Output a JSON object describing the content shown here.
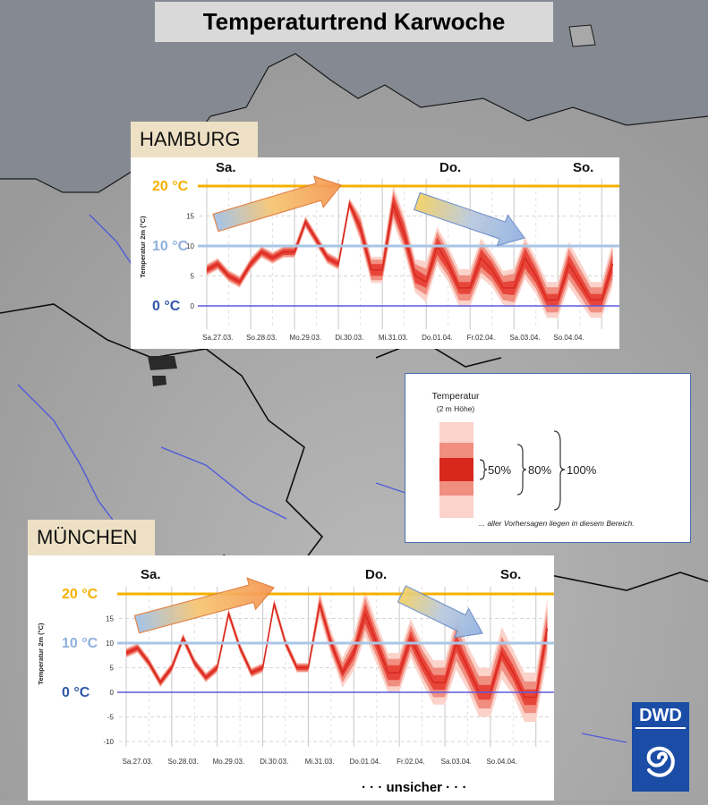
{
  "title": "Temperaturtrend Karwoche",
  "colors": {
    "line20": "#f5b000",
    "line10": "#a9c6e6",
    "line0": "#5a5ae0",
    "label20": "#f5b000",
    "label10": "#8fb0dc",
    "label0": "#2f57a8",
    "median": "#d8281e",
    "band50": "#e8453a",
    "band80": "#f08e80",
    "band100": "#fbd3ca"
  },
  "charts": [
    {
      "city": "HAMBURG",
      "ylabel": "Temperatur 2m (°C)",
      "yticks": [
        "15",
        "10",
        "5",
        "0"
      ],
      "xticks": [
        "Sa.27.03.",
        "So.28.03.",
        "Mo.29.03.",
        "Di.30.03.",
        "Mi.31.03.",
        "Do.01.04.",
        "Fr.02.04.",
        "Sa.03.04.",
        "So.04.04."
      ],
      "days": [
        "Sa.",
        "Do.",
        "So."
      ],
      "ref": [
        "20 °C",
        "10 °C",
        "0 °C"
      ]
    },
    {
      "city": "MÜNCHEN",
      "ylabel": "Temperatur 2m (°C)",
      "yticks": [
        "15",
        "10",
        "5",
        "0",
        "-5",
        "-10"
      ],
      "xticks": [
        "Sa.27.03.",
        "So.28.03.",
        "Mo.29.03.",
        "Di.30.03.",
        "Mi.31.03.",
        "Do.01.04.",
        "Fr.02.04.",
        "Sa.03.04.",
        "So.04.04."
      ],
      "days": [
        "Sa.",
        "Do.",
        "So."
      ],
      "ref": [
        "20 °C",
        "10 °C",
        "0 °C"
      ]
    }
  ],
  "chart_data": [
    {
      "type": "area",
      "title": "HAMBURG",
      "ylabel": "Temperatur 2m (°C)",
      "ylim": [
        -3,
        20
      ],
      "xlim": [
        0,
        9.3
      ],
      "xtick_labels": [
        "Sa.27.03.",
        "So.28.03.",
        "Mo.29.03.",
        "Di.30.03.",
        "Mi.31.03.",
        "Do.01.04.",
        "Fr.02.04.",
        "Sa.03.04.",
        "So.04.04."
      ],
      "reference_lines": [
        20,
        10,
        0
      ],
      "series": [
        {
          "name": "median",
          "x": [
            0.0,
            0.25,
            0.5,
            0.75,
            1.0,
            1.25,
            1.5,
            1.75,
            2.0,
            2.25,
            2.5,
            2.75,
            3.0,
            3.25,
            3.5,
            3.75,
            4.0,
            4.25,
            4.5,
            4.75,
            5.0,
            5.25,
            5.5,
            5.75,
            6.0,
            6.25,
            6.5,
            6.75,
            7.0,
            7.25,
            7.5,
            7.75,
            8.0,
            8.25,
            8.5,
            8.75,
            9.0,
            9.25
          ],
          "values": [
            6,
            7,
            5,
            4,
            7,
            9,
            8,
            9,
            9,
            14,
            11,
            8,
            7,
            17,
            13,
            6,
            6,
            17,
            12,
            5,
            4,
            10,
            7,
            3,
            3,
            8,
            6,
            3,
            3,
            8,
            5,
            1,
            1,
            7,
            4,
            1,
            1,
            7
          ]
        },
        {
          "name": "p50_low",
          "values": [
            5.5,
            6.5,
            4.5,
            3.5,
            6.5,
            8.5,
            7.5,
            8.5,
            8.5,
            13.5,
            10.5,
            7.5,
            6.5,
            16.5,
            12.0,
            5.0,
            5.0,
            15.5,
            10.5,
            3.8,
            3.0,
            8.5,
            5.8,
            2.0,
            2.0,
            6.5,
            4.8,
            2.0,
            1.8,
            6.3,
            3.8,
            0.0,
            0.0,
            5.5,
            2.8,
            0.0,
            0.0,
            5.5
          ]
        },
        {
          "name": "p50_high",
          "values": [
            6.5,
            7.5,
            5.5,
            4.5,
            7.5,
            9.5,
            8.5,
            9.5,
            9.5,
            14.5,
            11.5,
            8.5,
            7.5,
            17.5,
            14.0,
            7.0,
            7.0,
            18.5,
            13.5,
            6.2,
            5.0,
            11.5,
            8.2,
            4.0,
            4.0,
            9.5,
            7.2,
            4.0,
            4.2,
            9.7,
            6.2,
            2.0,
            2.0,
            8.5,
            5.2,
            2.0,
            2.0,
            8.5
          ]
        },
        {
          "name": "p80_low",
          "values": [
            5.2,
            6.2,
            4.2,
            3.2,
            6.2,
            8.2,
            7.2,
            8.2,
            8.2,
            13.2,
            10.2,
            7.2,
            6.2,
            16.2,
            11.3,
            4.3,
            4.3,
            14.8,
            9.8,
            3.0,
            1.8,
            7.6,
            4.9,
            0.9,
            0.9,
            5.6,
            4.0,
            1.0,
            0.6,
            5.4,
            2.9,
            -1.1,
            -1.1,
            4.4,
            1.7,
            -1.1,
            -1.1,
            4.4
          ]
        },
        {
          "name": "p80_high",
          "values": [
            6.8,
            7.8,
            5.8,
            4.8,
            7.8,
            9.8,
            8.8,
            9.8,
            9.8,
            14.8,
            11.8,
            8.8,
            7.8,
            17.8,
            14.7,
            7.7,
            7.7,
            19.2,
            14.2,
            7.0,
            6.2,
            12.4,
            9.1,
            5.1,
            5.1,
            10.4,
            8.0,
            5.0,
            5.4,
            10.6,
            7.1,
            3.1,
            3.1,
            9.6,
            6.3,
            3.1,
            3.1,
            9.6
          ]
        },
        {
          "name": "p100_low",
          "values": [
            5.0,
            6.0,
            4.0,
            3.0,
            6.0,
            8.0,
            7.0,
            8.0,
            8.0,
            13.0,
            10.0,
            7.0,
            6.0,
            16.0,
            10.8,
            3.8,
            3.8,
            13.9,
            8.9,
            2.2,
            0.6,
            6.8,
            4.0,
            -0.1,
            -0.1,
            4.7,
            3.2,
            0.2,
            -0.2,
            4.5,
            2.0,
            -2.0,
            -2.0,
            3.3,
            0.6,
            -2.0,
            -2.0,
            3.3
          ]
        },
        {
          "name": "p100_high",
          "values": [
            7.0,
            8.0,
            6.0,
            5.0,
            8.0,
            10.0,
            9.0,
            10.0,
            10.0,
            15.0,
            12.0,
            9.0,
            8.0,
            18.0,
            15.2,
            8.2,
            8.2,
            20.1,
            15.1,
            7.8,
            7.4,
            13.2,
            10.0,
            6.1,
            6.1,
            11.3,
            8.8,
            5.8,
            6.2,
            11.5,
            8.0,
            4.0,
            4.0,
            10.7,
            7.4,
            4.0,
            4.0,
            10.7
          ]
        }
      ]
    },
    {
      "type": "area",
      "title": "MÜNCHEN",
      "ylabel": "Temperatur 2m (°C)",
      "ylim": [
        -10,
        20
      ],
      "xlim": [
        0,
        9.3
      ],
      "xtick_labels": [
        "Sa.27.03.",
        "So.28.03.",
        "Mo.29.03.",
        "Di.30.03.",
        "Mi.31.03.",
        "Do.01.04.",
        "Fr.02.04.",
        "Sa.03.04.",
        "So.04.04."
      ],
      "reference_lines": [
        20,
        10,
        0
      ],
      "series": [
        {
          "name": "median",
          "x": [
            0.0,
            0.25,
            0.5,
            0.75,
            1.0,
            1.25,
            1.5,
            1.75,
            2.0,
            2.25,
            2.5,
            2.75,
            3.0,
            3.25,
            3.5,
            3.75,
            4.0,
            4.25,
            4.5,
            4.75,
            5.0,
            5.25,
            5.5,
            5.75,
            6.0,
            6.25,
            6.5,
            6.75,
            7.0,
            7.25,
            7.5,
            7.75,
            8.0,
            8.25,
            8.5,
            8.75,
            9.0,
            9.25
          ],
          "values": [
            8,
            9,
            6,
            2,
            5,
            11,
            6,
            3,
            5,
            16,
            9,
            4,
            5,
            18,
            10,
            5,
            5,
            18,
            10,
            4,
            8,
            16,
            10,
            4,
            4,
            11,
            6,
            2,
            2,
            10,
            5,
            0,
            0,
            8,
            4,
            -1,
            -1,
            13
          ]
        },
        {
          "name": "p50_low",
          "values": [
            7.5,
            8.5,
            5.5,
            1.5,
            4.5,
            10.5,
            5.5,
            2.5,
            4.5,
            15.5,
            8.5,
            3.5,
            4.5,
            17.5,
            9.5,
            4.5,
            4.5,
            17.2,
            9.0,
            3.0,
            6.8,
            14.0,
            8.5,
            2.5,
            2.5,
            9.5,
            4.5,
            0.5,
            0.5,
            8.2,
            3.5,
            -1.5,
            -1.5,
            6.5,
            2.5,
            -2.6,
            -2.6,
            11.0
          ]
        },
        {
          "name": "p50_high",
          "values": [
            8.5,
            9.5,
            6.5,
            2.5,
            5.5,
            11.5,
            6.5,
            3.5,
            5.5,
            16.5,
            9.5,
            4.5,
            5.5,
            18.5,
            10.5,
            5.5,
            5.5,
            18.8,
            11.0,
            5.0,
            9.2,
            18.0,
            11.5,
            5.5,
            5.5,
            12.5,
            7.5,
            3.5,
            3.5,
            11.8,
            6.5,
            1.5,
            1.5,
            9.5,
            5.5,
            0.6,
            0.6,
            15.0
          ]
        },
        {
          "name": "p80_low",
          "values": [
            7.2,
            8.2,
            5.2,
            1.2,
            4.2,
            10.2,
            5.2,
            2.2,
            4.2,
            15.2,
            8.2,
            3.2,
            4.2,
            17.2,
            9.2,
            4.2,
            4.2,
            16.3,
            8.3,
            2.0,
            5.6,
            12.7,
            7.2,
            1.2,
            1.2,
            8.3,
            3.3,
            -1.0,
            -1.0,
            6.4,
            2.0,
            -3.3,
            -3.3,
            4.6,
            0.9,
            -4.2,
            -4.2,
            8.9
          ]
        },
        {
          "name": "p80_high",
          "values": [
            8.8,
            9.8,
            6.8,
            2.8,
            5.8,
            11.8,
            6.8,
            3.8,
            5.8,
            16.8,
            9.8,
            4.8,
            5.8,
            18.8,
            10.8,
            5.8,
            5.8,
            19.7,
            11.7,
            6.0,
            10.4,
            19.3,
            12.8,
            6.8,
            6.8,
            13.7,
            8.7,
            5.0,
            5.0,
            13.6,
            8.0,
            3.3,
            3.3,
            11.4,
            7.1,
            2.2,
            2.2,
            17.1
          ]
        },
        {
          "name": "p100_low",
          "values": [
            7.0,
            8.0,
            5.0,
            1.0,
            4.0,
            10.0,
            5.0,
            2.0,
            4.0,
            15.0,
            8.0,
            3.0,
            4.0,
            17.0,
            9.0,
            4.0,
            4.0,
            15.4,
            7.6,
            1.0,
            4.4,
            11.3,
            5.8,
            0.0,
            0.0,
            7.0,
            2.0,
            -2.5,
            -2.5,
            4.6,
            0.5,
            -5.0,
            -5.0,
            2.7,
            -0.6,
            -6.0,
            -6.0,
            6.8
          ]
        },
        {
          "name": "p100_high",
          "values": [
            9.0,
            10.0,
            7.0,
            3.0,
            6.0,
            12.0,
            7.0,
            4.0,
            6.0,
            17.0,
            10.0,
            5.0,
            6.0,
            19.0,
            11.0,
            6.0,
            6.0,
            20.5,
            12.4,
            7.0,
            11.6,
            20.7,
            14.2,
            8.0,
            8.0,
            15.0,
            10.0,
            6.5,
            6.5,
            15.4,
            9.5,
            5.0,
            5.0,
            13.3,
            8.6,
            4.0,
            4.0,
            19.2
          ]
        }
      ]
    }
  ],
  "legend": {
    "title": "Temperatur",
    "subtitle": "(2 m Höhe)",
    "p50": "50%",
    "p80": "80%",
    "p100": "100%",
    "note": "... aller Vorhersagen liegen in diesem Bereich."
  },
  "logo": "DWD",
  "footer": "· · · unsicher · · ·"
}
